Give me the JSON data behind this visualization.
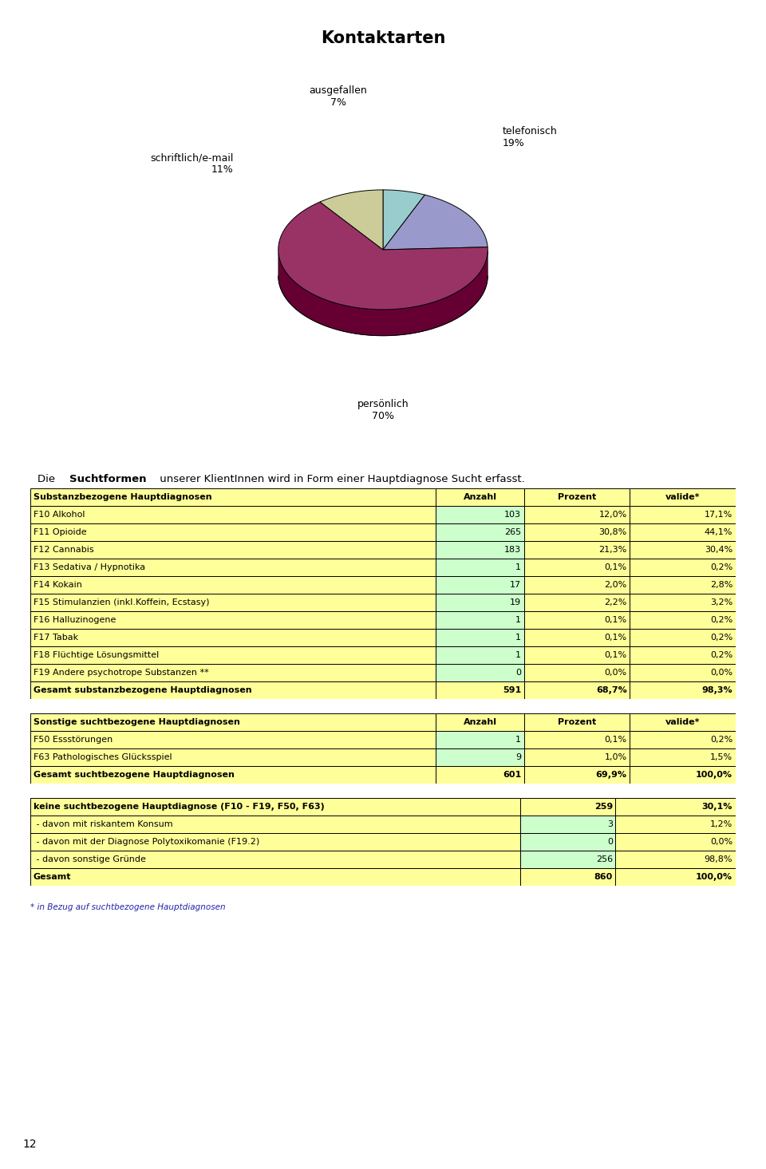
{
  "title": "Kontaktarten",
  "pie_values": [
    19,
    11,
    7,
    70
  ],
  "pie_colors": [
    "#9999cc",
    "#cccc99",
    "#99cccc",
    "#993366"
  ],
  "pie_dark_colors": [
    "#666699",
    "#999966",
    "#669999",
    "#660033"
  ],
  "pie_label_texts": [
    "telefonisch\n19%",
    "schriftlich/e-mail\n11%",
    "ausgefallen\n7%",
    "persönlich\n70%"
  ],
  "intro_normal1": "Die ",
  "intro_bold": "Suchtformen",
  "intro_normal2": " unserer KlientInnen wird in Form einer Hauptdiagnose Sucht erfasst.",
  "table1_header": [
    "Substanzbezogene Hauptdiagnosen",
    "Anzahl",
    "Prozent",
    "valide*"
  ],
  "table1_rows": [
    [
      "F10 Alkohol",
      "103",
      "12,0%",
      "17,1%"
    ],
    [
      "F11 Opioide",
      "265",
      "30,8%",
      "44,1%"
    ],
    [
      "F12 Cannabis",
      "183",
      "21,3%",
      "30,4%"
    ],
    [
      "F13 Sedativa / Hypnotika",
      "1",
      "0,1%",
      "0,2%"
    ],
    [
      "F14 Kokain",
      "17",
      "2,0%",
      "2,8%"
    ],
    [
      "F15 Stimulanzien (inkl.Koffein, Ecstasy)",
      "19",
      "2,2%",
      "3,2%"
    ],
    [
      "F16 Halluzinogene",
      "1",
      "0,1%",
      "0,2%"
    ],
    [
      "F17 Tabak",
      "1",
      "0,1%",
      "0,2%"
    ],
    [
      "F18 Flüchtige Lösungsmittel",
      "1",
      "0,1%",
      "0,2%"
    ],
    [
      "F19 Andere psychotrope Substanzen **",
      "0",
      "0,0%",
      "0,0%"
    ],
    [
      "Gesamt substanzbezogene Hauptdiagnosen",
      "591",
      "68,7%",
      "98,3%"
    ]
  ],
  "table2_header": [
    "Sonstige suchtbezogene Hauptdiagnosen",
    "Anzahl",
    "Prozent",
    "valide*"
  ],
  "table2_rows": [
    [
      "F50 Essstörungen",
      "1",
      "0,1%",
      "0,2%"
    ],
    [
      "F63 Pathologisches Glücksspiel",
      "9",
      "1,0%",
      "1,5%"
    ],
    [
      "Gesamt suchtbezogene Hauptdiagnosen",
      "601",
      "69,9%",
      "100,0%"
    ]
  ],
  "table3_header": [
    "keine suchtbezogene Hauptdiagnose (F10 - F19, F50, F63)",
    "259",
    "30,1%"
  ],
  "table3_rows": [
    [
      " - davon mit riskantem Konsum",
      "3",
      "1,2%"
    ],
    [
      " - davon mit der Diagnose Polytoxikomanie (F19.2)",
      "0",
      "0,0%"
    ],
    [
      " - davon sonstige Gründe",
      "256",
      "98,8%"
    ],
    [
      "Gesamt",
      "860",
      "100,0%"
    ]
  ],
  "footnote": "* in Bezug auf suchtbezogene Hauptdiagnosen",
  "page_number": "12",
  "header_bg": "#ffff99",
  "cell_bg_green": "#ccffcc",
  "cell_bg_yellow": "#ffff99",
  "bg_color": "#ffffff"
}
